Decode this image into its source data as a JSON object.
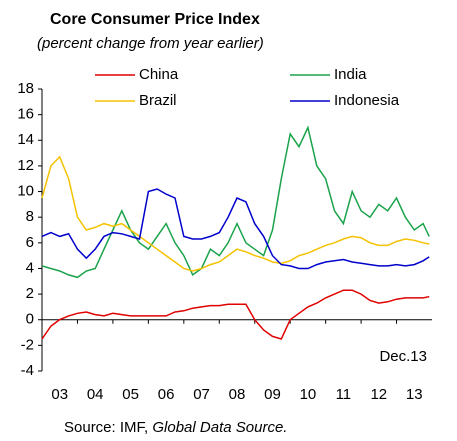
{
  "chart_data": {
    "type": "line",
    "title": "Core Consumer Price Index",
    "subtitle": "(percent change from year earlier)",
    "annotation": "Dec.13",
    "source_prefix": "Source: IMF,",
    "source_italic": "Global Data Source.",
    "x": [
      3,
      3.25,
      3.5,
      3.75,
      4,
      4.25,
      4.5,
      4.75,
      5,
      5.25,
      5.5,
      5.75,
      6,
      6.25,
      6.5,
      6.75,
      7,
      7.25,
      7.5,
      7.75,
      8,
      8.25,
      8.5,
      8.75,
      9,
      9.25,
      9.5,
      9.75,
      10,
      10.25,
      10.5,
      10.75,
      11,
      11.25,
      11.5,
      11.75,
      12,
      12.25,
      12.5,
      12.75,
      13,
      13.25,
      13.5,
      13.75,
      13.92
    ],
    "series": [
      {
        "name": "China",
        "color": "#e00000",
        "values": [
          -1.5,
          -0.5,
          0,
          0.3,
          0.5,
          0.6,
          0.4,
          0.3,
          0.5,
          0.4,
          0.3,
          0.3,
          0.3,
          0.3,
          0.3,
          0.6,
          0.7,
          0.9,
          1.0,
          1.1,
          1.1,
          1.2,
          1.2,
          1.2,
          0.0,
          -0.8,
          -1.3,
          -1.5,
          0.0,
          0.5,
          1.0,
          1.3,
          1.7,
          2.0,
          2.3,
          2.3,
          2.0,
          1.5,
          1.3,
          1.4,
          1.6,
          1.7,
          1.7,
          1.7,
          1.8
        ]
      },
      {
        "name": "India",
        "color": "#1aa34a",
        "values": [
          4.2,
          4.0,
          3.8,
          3.5,
          3.3,
          3.8,
          4.0,
          5.5,
          7.0,
          8.5,
          7.0,
          6.0,
          5.5,
          6.5,
          7.5,
          6.0,
          5.0,
          3.5,
          4.0,
          5.5,
          5.0,
          6.0,
          7.5,
          6.0,
          5.5,
          5.0,
          7.0,
          11.0,
          14.5,
          13.5,
          15.0,
          12.0,
          11.0,
          8.5,
          7.5,
          10.0,
          8.5,
          8.0,
          9.0,
          8.5,
          9.5,
          8.0,
          7.0,
          7.5,
          6.5
        ]
      },
      {
        "name": "Brazil",
        "color": "#f5c200",
        "values": [
          9.5,
          12.0,
          12.7,
          11.0,
          8.0,
          7.0,
          7.2,
          7.5,
          7.3,
          7.5,
          7.0,
          6.5,
          6.0,
          5.5,
          5.0,
          4.5,
          4.0,
          3.8,
          4.0,
          4.3,
          4.5,
          5.0,
          5.5,
          5.3,
          5.0,
          4.8,
          4.5,
          4.4,
          4.6,
          5.0,
          5.2,
          5.5,
          5.8,
          6.0,
          6.3,
          6.5,
          6.4,
          6.0,
          5.8,
          5.8,
          6.1,
          6.3,
          6.2,
          6.0,
          5.9
        ]
      },
      {
        "name": "Indonesia",
        "color": "#0000cc",
        "values": [
          6.5,
          6.8,
          6.5,
          6.7,
          5.5,
          4.8,
          5.5,
          6.5,
          6.8,
          6.7,
          6.5,
          6.3,
          10.0,
          10.2,
          9.8,
          9.5,
          6.5,
          6.3,
          6.3,
          6.5,
          6.8,
          8.0,
          9.5,
          9.2,
          7.5,
          6.5,
          5.0,
          4.3,
          4.2,
          4.0,
          4.0,
          4.3,
          4.5,
          4.6,
          4.7,
          4.5,
          4.4,
          4.3,
          4.2,
          4.2,
          4.3,
          4.2,
          4.3,
          4.6,
          4.9
        ]
      }
    ],
    "xlim": [
      3,
      14
    ],
    "xticks": [
      {
        "value": 3,
        "label": "03"
      },
      {
        "value": 4,
        "label": "04"
      },
      {
        "value": 5,
        "label": "05"
      },
      {
        "value": 6,
        "label": "06"
      },
      {
        "value": 7,
        "label": "07"
      },
      {
        "value": 8,
        "label": "08"
      },
      {
        "value": 9,
        "label": "09"
      },
      {
        "value": 10,
        "label": "10"
      },
      {
        "value": 11,
        "label": "11"
      },
      {
        "value": 12,
        "label": "12"
      },
      {
        "value": 13,
        "label": "13"
      }
    ],
    "ylim": [
      -4,
      18
    ],
    "yticks": [
      -4,
      -2,
      0,
      2,
      4,
      6,
      8,
      10,
      12,
      14,
      16,
      18
    ],
    "grid": false
  }
}
